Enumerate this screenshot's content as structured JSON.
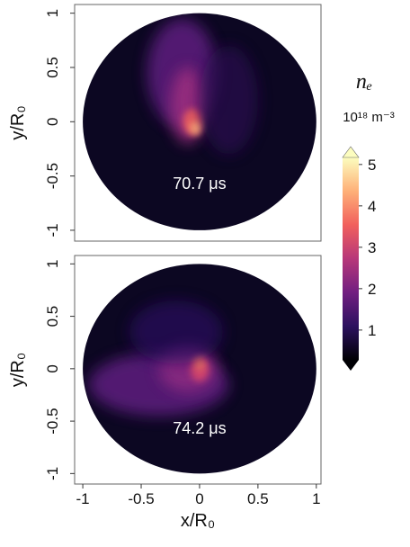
{
  "chart_data": [
    {
      "type": "heatmap",
      "annotation": "70.7 μs",
      "ylabel": "y/R₀",
      "xlim": [
        -1.07,
        1.04
      ],
      "ylim": [
        -1.1,
        1.08
      ],
      "yticks": [
        1,
        0.5,
        0,
        -0.5,
        -1
      ]
    },
    {
      "type": "heatmap",
      "annotation": "74.2 μs",
      "ylabel": "y/R₀",
      "xlabel": "x/R₀",
      "xlim": [
        -1.07,
        1.04
      ],
      "ylim": [
        -1.1,
        1.08
      ],
      "yticks": [
        1,
        0.5,
        0,
        -0.5,
        -1
      ],
      "xticks": [
        -1,
        -0.5,
        0,
        0.5,
        1
      ]
    }
  ],
  "colorbar": {
    "label": "nₑ",
    "units": "10¹⁸ m⁻³",
    "lim": [
      0.28,
      5.17
    ],
    "ticks": [
      1,
      2,
      3,
      4,
      5
    ],
    "colors": [
      "#000004",
      "#2c115f",
      "#721f81",
      "#b73779",
      "#f1605d",
      "#feb078",
      "#fcfdbf"
    ]
  }
}
